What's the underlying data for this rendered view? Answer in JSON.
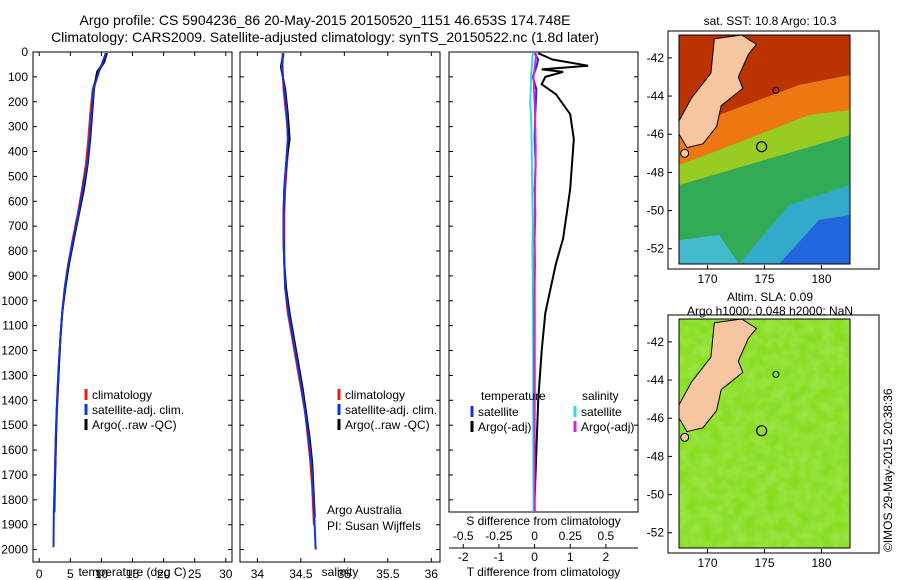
{
  "title": {
    "line1": "Argo profile: CS 5904236_86 20-May-2015 20150520_1151 46.653S 174.748E",
    "line2": "Climatology: CARS2009. Satellite-adjusted climatology: synTS_20150522.nc (1.8d later)"
  },
  "colors": {
    "climatology": "#dd2222",
    "satellite": "#1133dd",
    "argo": "#000000",
    "salinity_sat": "#33dddd",
    "salinity_argo": "#dd22dd"
  },
  "chart_data": [
    {
      "id": "temperature",
      "type": "line",
      "xlabel": "temperature (deg C)",
      "ylabel": "",
      "xlim": [
        -1,
        31
      ],
      "ylim": [
        2050,
        0
      ],
      "xticks": [
        "0",
        "5",
        "10",
        "15",
        "20",
        "25",
        "30"
      ],
      "xtick_values": [
        0,
        5,
        10,
        15,
        20,
        25,
        30
      ],
      "yticks": [
        "0",
        "100",
        "200",
        "300",
        "400",
        "500",
        "600",
        "700",
        "800",
        "900",
        "1000",
        "1100",
        "1200",
        "1300",
        "1400",
        "1500",
        "1600",
        "1700",
        "1800",
        "1900",
        "2000"
      ],
      "ytick_values": [
        0,
        100,
        200,
        300,
        400,
        500,
        600,
        700,
        800,
        900,
        1000,
        1100,
        1200,
        1300,
        1400,
        1500,
        1600,
        1700,
        1800,
        1900,
        2000
      ],
      "legend": [
        "climatology",
        "satellite-adj. clim.",
        "Argo(..raw -QC)"
      ],
      "series": [
        {
          "name": "climatology",
          "color": "#dd2222",
          "x": [
            10.8,
            10.5,
            9.5,
            8.6,
            8.2,
            7.9,
            7.5,
            6.9,
            6.2,
            5.4,
            4.7,
            4.1,
            3.7,
            3.4,
            3.2,
            3.0,
            2.85,
            2.7,
            2.6,
            2.5,
            2.45
          ],
          "y": [
            5,
            40,
            80,
            150,
            250,
            350,
            450,
            550,
            650,
            750,
            850,
            950,
            1050,
            1150,
            1250,
            1350,
            1450,
            1550,
            1650,
            1750,
            1850
          ]
        },
        {
          "name": "Argo(..raw -QC)",
          "color": "#000000",
          "x": [
            10.9,
            10.4,
            9.3,
            8.8,
            8.5,
            8.2,
            7.8,
            7.2,
            6.4,
            5.6,
            4.8,
            4.2,
            3.7,
            3.4,
            3.2,
            3.0,
            2.8,
            2.7,
            2.6,
            2.5,
            2.4
          ],
          "y": [
            5,
            40,
            80,
            150,
            250,
            350,
            450,
            550,
            650,
            750,
            850,
            950,
            1050,
            1150,
            1250,
            1350,
            1450,
            1550,
            1650,
            1750,
            1850
          ]
        },
        {
          "name": "satellite-adj. clim.",
          "color": "#1133dd",
          "x": [
            10.7,
            10.2,
            9.6,
            8.7,
            8.4,
            8.1,
            7.7,
            7.0,
            6.3,
            5.5,
            4.7,
            4.1,
            3.7,
            3.4,
            3.15,
            2.95,
            2.8,
            2.65,
            2.55,
            2.45,
            2.35,
            2.3
          ],
          "y": [
            5,
            40,
            80,
            150,
            250,
            350,
            450,
            550,
            650,
            750,
            850,
            950,
            1050,
            1150,
            1250,
            1350,
            1450,
            1550,
            1650,
            1750,
            1850,
            1990
          ]
        }
      ]
    },
    {
      "id": "salinity",
      "type": "line",
      "xlabel": "salinity",
      "xlim": [
        33.8,
        36.1
      ],
      "ylim": [
        2050,
        0
      ],
      "xticks": [
        "34",
        "34.5",
        "35",
        "35.5",
        "36"
      ],
      "xtick_values": [
        34,
        34.5,
        35,
        35.5,
        36
      ],
      "legend": [
        "climatology",
        "satellite-adj. clim.",
        "Argo(..raw -QC)"
      ],
      "annotation": [
        "Argo Australia",
        "PI: Susan Wijffels"
      ],
      "series": [
        {
          "name": "climatology",
          "color": "#dd2222",
          "x": [
            34.29,
            34.29,
            34.3,
            34.33,
            34.36,
            34.34,
            34.32,
            34.31,
            34.31,
            34.31,
            34.32,
            34.35,
            34.4,
            34.45,
            34.5,
            34.55,
            34.58,
            34.61,
            34.63,
            34.65
          ],
          "y": [
            5,
            60,
            150,
            250,
            350,
            450,
            550,
            650,
            750,
            850,
            950,
            1050,
            1150,
            1250,
            1350,
            1450,
            1550,
            1650,
            1750,
            1900
          ]
        },
        {
          "name": "Argo(..raw -QC)",
          "color": "#000000",
          "x": [
            34.3,
            34.27,
            34.32,
            34.35,
            34.37,
            34.33,
            34.31,
            34.3,
            34.3,
            34.31,
            34.33,
            34.37,
            34.42,
            34.47,
            34.52,
            34.56,
            34.6,
            34.63,
            34.66
          ],
          "y": [
            5,
            60,
            150,
            250,
            350,
            450,
            550,
            650,
            750,
            850,
            950,
            1050,
            1150,
            1250,
            1350,
            1450,
            1550,
            1650,
            1870
          ]
        },
        {
          "name": "satellite-adj. clim.",
          "color": "#1133dd",
          "x": [
            34.3,
            34.28,
            34.31,
            34.34,
            34.35,
            34.33,
            34.31,
            34.3,
            34.3,
            34.31,
            34.32,
            34.36,
            34.41,
            34.46,
            34.51,
            34.55,
            34.59,
            34.62,
            34.64,
            34.67
          ],
          "y": [
            5,
            60,
            150,
            250,
            350,
            450,
            550,
            650,
            750,
            850,
            950,
            1050,
            1150,
            1250,
            1350,
            1450,
            1550,
            1650,
            1750,
            2000
          ]
        }
      ]
    },
    {
      "id": "difference",
      "type": "line",
      "xlabel_top": "S difference from climatology",
      "xticks_top": [
        "-0.5",
        "-0.25",
        "0",
        "0.25",
        "0.5"
      ],
      "xtick_values_top": [
        -0.5,
        -0.25,
        0,
        0.25,
        0.5
      ],
      "xlabel": "T difference from climatology",
      "xticks": [
        "-2",
        "-1",
        "0",
        "1",
        "2"
      ],
      "xtick_values": [
        -2,
        -1,
        0,
        1,
        2
      ],
      "xlim": [
        -2.4,
        2.9
      ],
      "ylim": [
        2050,
        0
      ],
      "legend_temperature": {
        "heading": "temperature",
        "items": [
          "satellite",
          "Argo(-adj)"
        ]
      },
      "legend_salinity": {
        "heading": "salinity",
        "items": [
          "satellite",
          "Argo(-adj)"
        ]
      },
      "series": [
        {
          "name": "T satellite",
          "color": "#1133dd",
          "x": [
            0.0,
            0.1,
            0.05,
            -0.05,
            0.05,
            0.02,
            0.0,
            0.03,
            0.0,
            0.02,
            0.0,
            0.01,
            0.0,
            0.0,
            0.0,
            0.0,
            0.0,
            0.0,
            0.0
          ],
          "y": [
            5,
            30,
            60,
            100,
            150,
            250,
            350,
            450,
            550,
            650,
            750,
            850,
            950,
            1100,
            1300,
            1500,
            1700,
            1850,
            1900
          ]
        },
        {
          "name": "T Argo(-adj)",
          "color": "#000000",
          "x": [
            0.1,
            0.5,
            1.5,
            0.2,
            0.8,
            0.3,
            0.2,
            0.6,
            1.0,
            1.1,
            1.05,
            1.0,
            0.9,
            0.8,
            0.6,
            0.45,
            0.3,
            0.2,
            0.1,
            0.05,
            0.0,
            0.0
          ],
          "y": [
            5,
            30,
            55,
            70,
            80,
            100,
            130,
            170,
            250,
            350,
            450,
            550,
            650,
            750,
            850,
            950,
            1050,
            1200,
            1400,
            1600,
            1800,
            1900
          ]
        },
        {
          "name": "S satellite",
          "color": "#33dddd",
          "x": [
            -0.05,
            -0.1,
            -0.12,
            -0.09,
            -0.08,
            -0.07,
            -0.06,
            -0.05,
            -0.06,
            -0.05,
            -0.05,
            -0.04,
            -0.04,
            -0.03,
            -0.03
          ],
          "y": [
            5,
            100,
            200,
            300,
            400,
            500,
            600,
            700,
            800,
            900,
            1000,
            1200,
            1500,
            1800,
            1860
          ]
        },
        {
          "name": "S Argo(-adj)",
          "color": "#dd22dd",
          "x": [
            0.05,
            -0.03,
            0.0,
            0.02,
            0.03,
            0.02,
            0.01,
            0.0,
            0.0,
            -0.01,
            -0.01,
            -0.01,
            0.0,
            0.0
          ],
          "y": [
            5,
            100,
            200,
            300,
            400,
            500,
            600,
            700,
            800,
            1000,
            1200,
            1400,
            1600,
            1880
          ]
        }
      ]
    },
    {
      "id": "sst-map",
      "type": "heatmap",
      "title": "sat. SST: 10.8  Argo: 10.3",
      "xticks": [
        "170",
        "175",
        "180"
      ],
      "xtick_values": [
        170,
        175,
        180
      ],
      "yticks": [
        "-42",
        "-44",
        "-46",
        "-48",
        "-50",
        "-52"
      ],
      "ytick_values": [
        -42,
        -44,
        -46,
        -48,
        -50,
        -52
      ],
      "xlim": [
        167.5,
        182.5
      ],
      "ylim": [
        -52.8,
        -40.8
      ],
      "marker": {
        "lon": 174.748,
        "lat": -46.653
      }
    },
    {
      "id": "sla-map",
      "type": "heatmap",
      "title_line1": "Altim. SLA: 0.09",
      "title_line2": "Argo h1000: 0.048 h2000: NaN",
      "xticks": [
        "170",
        "175",
        "180"
      ],
      "xtick_values": [
        170,
        175,
        180
      ],
      "yticks": [
        "-42",
        "-44",
        "-46",
        "-48",
        "-50",
        "-52"
      ],
      "ytick_values": [
        -42,
        -44,
        -46,
        -48,
        -50,
        -52
      ],
      "xlim": [
        167.5,
        182.5
      ],
      "ylim": [
        -52.8,
        -40.8
      ],
      "marker": {
        "lon": 174.748,
        "lat": -46.653
      }
    }
  ],
  "credit": "©IMOS 29-May-2015 20:38:36"
}
